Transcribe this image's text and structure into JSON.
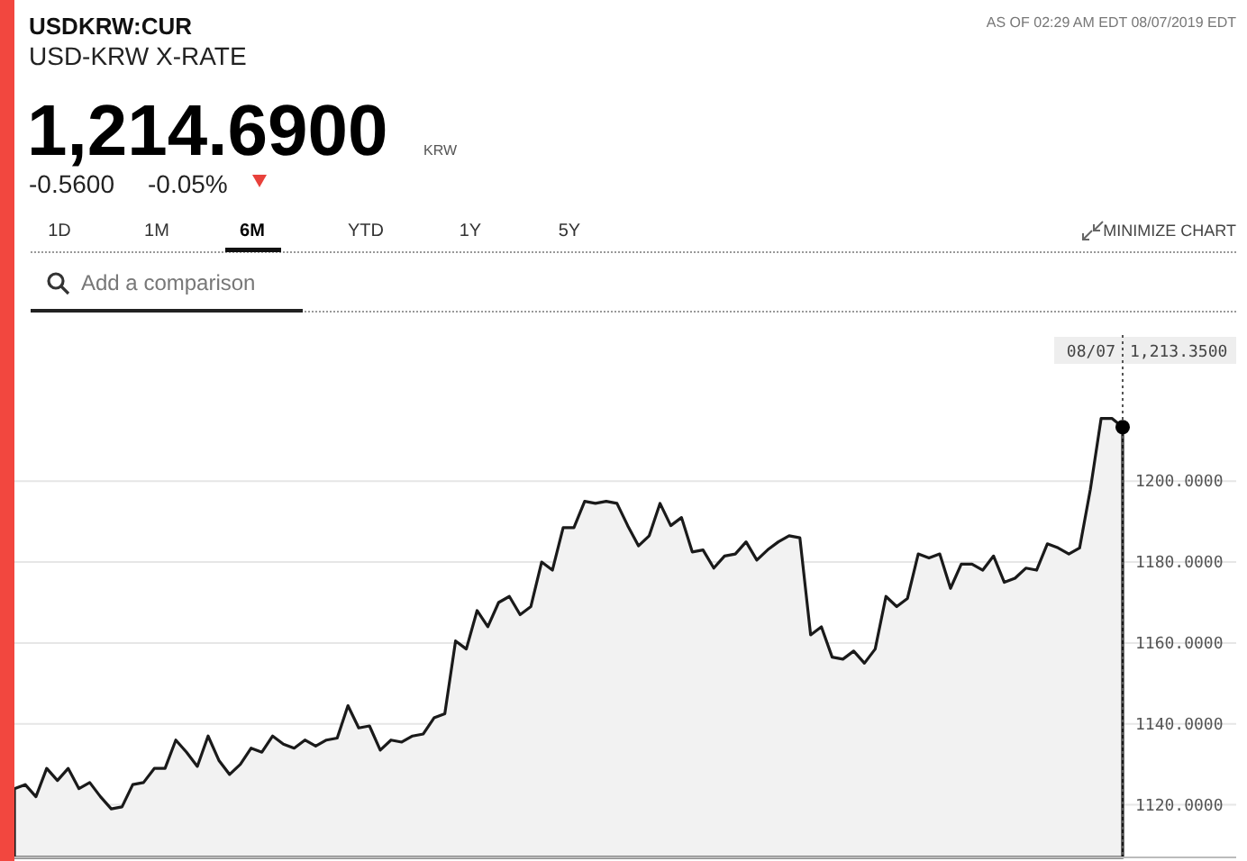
{
  "chart_data": {
    "type": "area",
    "title": "USDKRW:CUR",
    "subtitle": "USD-KRW X-RATE",
    "annotations": [
      "AS OF 02:29 AM EDT 08/07/2019 EDT",
      "1,214.6900",
      "KRW",
      "-0.5600",
      "-0.05%",
      "1D",
      "1M",
      "6M",
      "YTD",
      "1Y",
      "5Y",
      "MINIMIZE CHART",
      "Add a comparison",
      "08/07",
      "1,213.3500"
    ],
    "categories": [
      null,
      null,
      null,
      null,
      null,
      null,
      null,
      null,
      null,
      null,
      null,
      null,
      null,
      null,
      null,
      null,
      null,
      null,
      null,
      null,
      null,
      null,
      null,
      null,
      null,
      null,
      null,
      null,
      null,
      null,
      null,
      null,
      null,
      null,
      null,
      null,
      null,
      null,
      null,
      null,
      null,
      null,
      null,
      null,
      null,
      null,
      null,
      null,
      null,
      null,
      null,
      null,
      null,
      null,
      null,
      null,
      null,
      null,
      null,
      null,
      null,
      null,
      null,
      null,
      null,
      null,
      null,
      null,
      null,
      null,
      null,
      null,
      null,
      null,
      null,
      null,
      null,
      null,
      null,
      null,
      null,
      null,
      null,
      null,
      null,
      null,
      null,
      null,
      null,
      null,
      null,
      null,
      null,
      null,
      null,
      null,
      null,
      null,
      null,
      null,
      null,
      null,
      null,
      null
    ],
    "series": [
      {
        "color": "#1a1a1a",
        "values": [
          1124,
          1125,
          1122,
          1129,
          1126,
          1129,
          1124,
          1125.5,
          1122,
          1119,
          1119.5,
          1125,
          1125.5,
          1129,
          1129,
          1136,
          1133,
          1129.5,
          1137,
          1131,
          1127.5,
          1130,
          1134,
          1133,
          1137,
          1135,
          1134,
          1136,
          1134.5,
          1136,
          1136.5,
          1144.5,
          1139,
          1139.5,
          1133.5,
          1136,
          1135.5,
          1137,
          1137.5,
          1141.5,
          1142.5,
          1160.5,
          1158.5,
          1168,
          1164,
          1170,
          1171.5,
          1167,
          1169,
          1180,
          1178,
          1188.5,
          1188.5,
          1195,
          1194.5,
          1195,
          1194.5,
          1189,
          1184,
          1186.5,
          1194.5,
          1189,
          1191,
          1182.5,
          1183,
          1178.5,
          1181.5,
          1182,
          1185,
          1180.5,
          1183,
          1185,
          1186.5,
          1186,
          1162,
          1164,
          1156.5,
          1156,
          1158,
          1155,
          1158.5,
          1171.5,
          1169,
          1171,
          1182,
          1181,
          1182,
          1173.5,
          1179.5,
          1179.5,
          1178,
          1181.5,
          1175,
          1176,
          1178.5,
          1178,
          1184.5,
          1183.5,
          1182,
          1183.5,
          1198,
          1215.5,
          1215.5,
          1213.35
        ]
      }
    ],
    "tick_labels": "y",
    "ylim": [
      1107,
      1237
    ],
    "yticks": [
      {
        "value": 1120,
        "label": "1120.0000"
      },
      {
        "value": 1140,
        "label": "1140.0000"
      },
      {
        "value": 1160,
        "label": "1160.0000"
      },
      {
        "value": 1180,
        "label": "1180.0000"
      },
      {
        "value": 1200,
        "label": "1200.0000"
      }
    ],
    "grid": "y"
  }
}
